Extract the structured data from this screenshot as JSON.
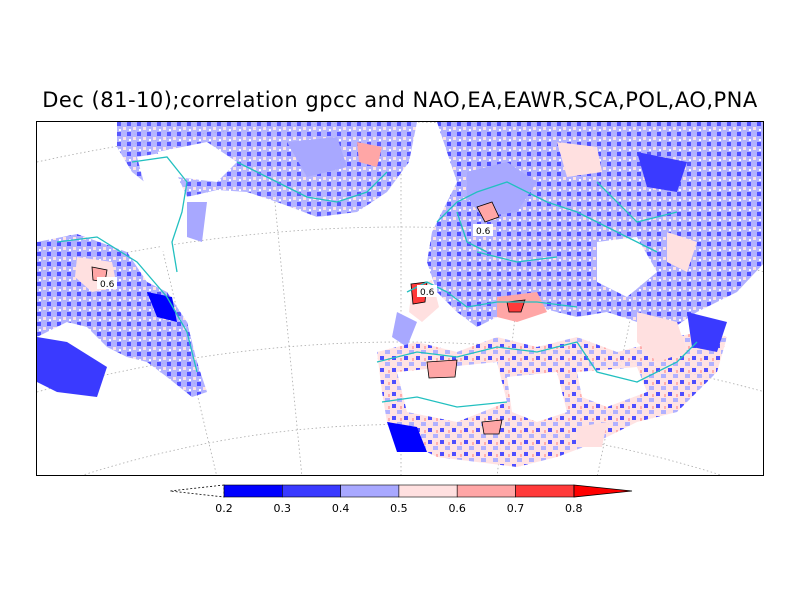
{
  "title": "Dec (81-10);correlation gpcc and NAO,EA,EAWR,SCA,POL,AO,PNA",
  "legend": {
    "ticks": [
      "0.2",
      "0.3",
      "0.4",
      "0.5",
      "0.6",
      "0.7",
      "0.8"
    ],
    "colors": [
      "#0000ff",
      "#3a3aff",
      "#a8a8ff",
      "#ffe0e0",
      "#ffa6a6",
      "#ff3a3a",
      "#ff0000"
    ]
  },
  "contour_labels": [
    "0.6",
    "0.6",
    "0.6"
  ],
  "colors": {
    "coastline": "#22c0c0",
    "grid": "#aaaaaa",
    "frame": "#000000"
  }
}
